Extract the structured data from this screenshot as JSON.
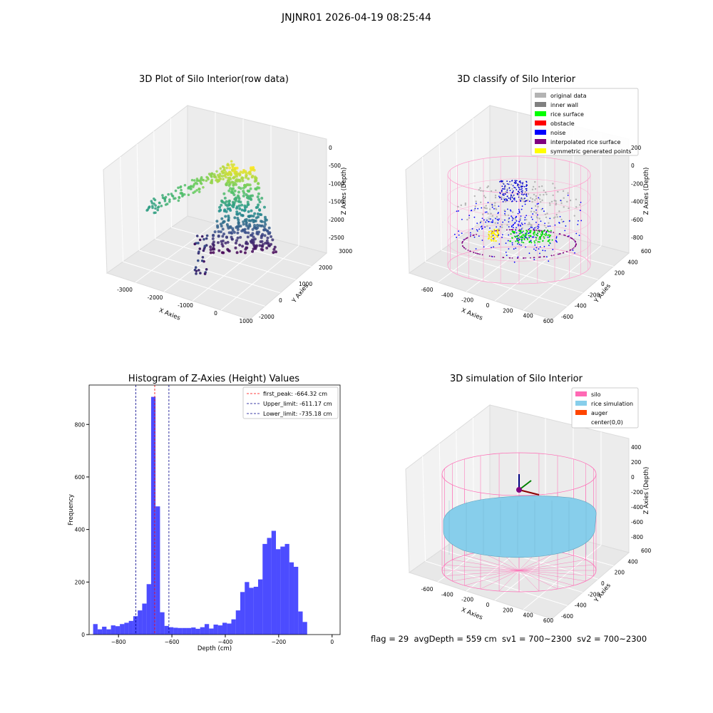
{
  "suptitle": "JNJNR01 2026-04-19 08:25:44",
  "footer": "flag = 29  avgDepth = 559 cm  sv1 = 700~2300  sv2 = 700~2300",
  "chart_data": [
    {
      "type": "scatter",
      "title": "3D Plot of Silo Interior(row data)",
      "xlabel": "X Axies",
      "ylabel": "Y Axies",
      "zlabel": "Z Axies (Depth)",
      "x_ticks": [
        "-3000",
        "-2000",
        "-1000",
        "0",
        "1000"
      ],
      "y_ticks": [
        "-2000",
        "0",
        "1000",
        "2000",
        "3000"
      ],
      "z_ticks": [
        "0",
        "-500",
        "-1000",
        "-1500",
        "-2000",
        "-2500"
      ],
      "colormap": "viridis"
    },
    {
      "type": "scatter",
      "title": "3D classify of Silo Interior",
      "xlabel": "X Axies",
      "ylabel": "Y Axies",
      "zlabel": "Z Axies (Depth)",
      "x_ticks": [
        "-600",
        "-400",
        "-200",
        "0",
        "200",
        "400",
        "600"
      ],
      "y_ticks": [
        "-600",
        "-400",
        "-200",
        "0",
        "200",
        "400",
        "600"
      ],
      "z_ticks": [
        "200",
        "0",
        "-200",
        "-400",
        "-600",
        "-800"
      ],
      "legend": [
        {
          "label": "original data",
          "color": "#b3b3b3"
        },
        {
          "label": "inner wall",
          "color": "#808080"
        },
        {
          "label": "rice surface",
          "color": "#00ff00"
        },
        {
          "label": "obstacle",
          "color": "#ff0000"
        },
        {
          "label": "noise",
          "color": "#0000ff"
        },
        {
          "label": "interpolated rice surface",
          "color": "#800080"
        },
        {
          "label": "symmetric generated points",
          "color": "#ffff00"
        }
      ],
      "legend_position": "top-right"
    },
    {
      "type": "bar",
      "title": "Histogram of Z-Axies (Height) Values",
      "xlabel": "Depth (cm)",
      "ylabel": "Frequency",
      "xlim": [
        -910,
        30
      ],
      "ylim": [
        0,
        950
      ],
      "x_ticks": [
        -800,
        -600,
        -400,
        -200,
        0
      ],
      "y_ticks": [
        0,
        200,
        400,
        600,
        800
      ],
      "bar_color": "#0000ff",
      "bin_start": -895,
      "bin_width": 16.7,
      "values": [
        40,
        20,
        30,
        20,
        35,
        32,
        40,
        45,
        52,
        70,
        92,
        118,
        192,
        905,
        488,
        85,
        33,
        28,
        26,
        25,
        25,
        25,
        27,
        22,
        28,
        40,
        23,
        38,
        35,
        45,
        42,
        58,
        92,
        162,
        200,
        178,
        182,
        210,
        345,
        368,
        395,
        325,
        335,
        345,
        275,
        258,
        88,
        48
      ],
      "lines": [
        {
          "label": "first_peak: -664.32 cm",
          "x": -664.32,
          "color": "#ff0000"
        },
        {
          "label": "Upper_limit: -611.17 cm",
          "x": -611.17,
          "color": "#00008b"
        },
        {
          "label": "Lower_limit: -735.18 cm",
          "x": -735.18,
          "color": "#00008b"
        }
      ],
      "legend_position": "top-right"
    },
    {
      "type": "scatter",
      "title": "3D simulation of Silo Interior",
      "xlabel": "X Axies",
      "ylabel": "Y Axies",
      "zlabel": "Z Axies (Depth)",
      "x_ticks": [
        "-600",
        "-400",
        "-200",
        "0",
        "200",
        "400",
        "600"
      ],
      "y_ticks": [
        "-600",
        "-400",
        "-200",
        "0",
        "200",
        "400",
        "600"
      ],
      "z_ticks": [
        "400",
        "200",
        "0",
        "-200",
        "-400",
        "-600",
        "-800"
      ],
      "legend": [
        {
          "label": "silo",
          "color": "#ff69b4"
        },
        {
          "label": "rice simulation",
          "color": "#87ceeb"
        },
        {
          "label": "auger",
          "color": "#ff4500"
        },
        {
          "label": "center(0,0)",
          "color": "#ffffff"
        }
      ],
      "legend_position": "top-right"
    }
  ]
}
